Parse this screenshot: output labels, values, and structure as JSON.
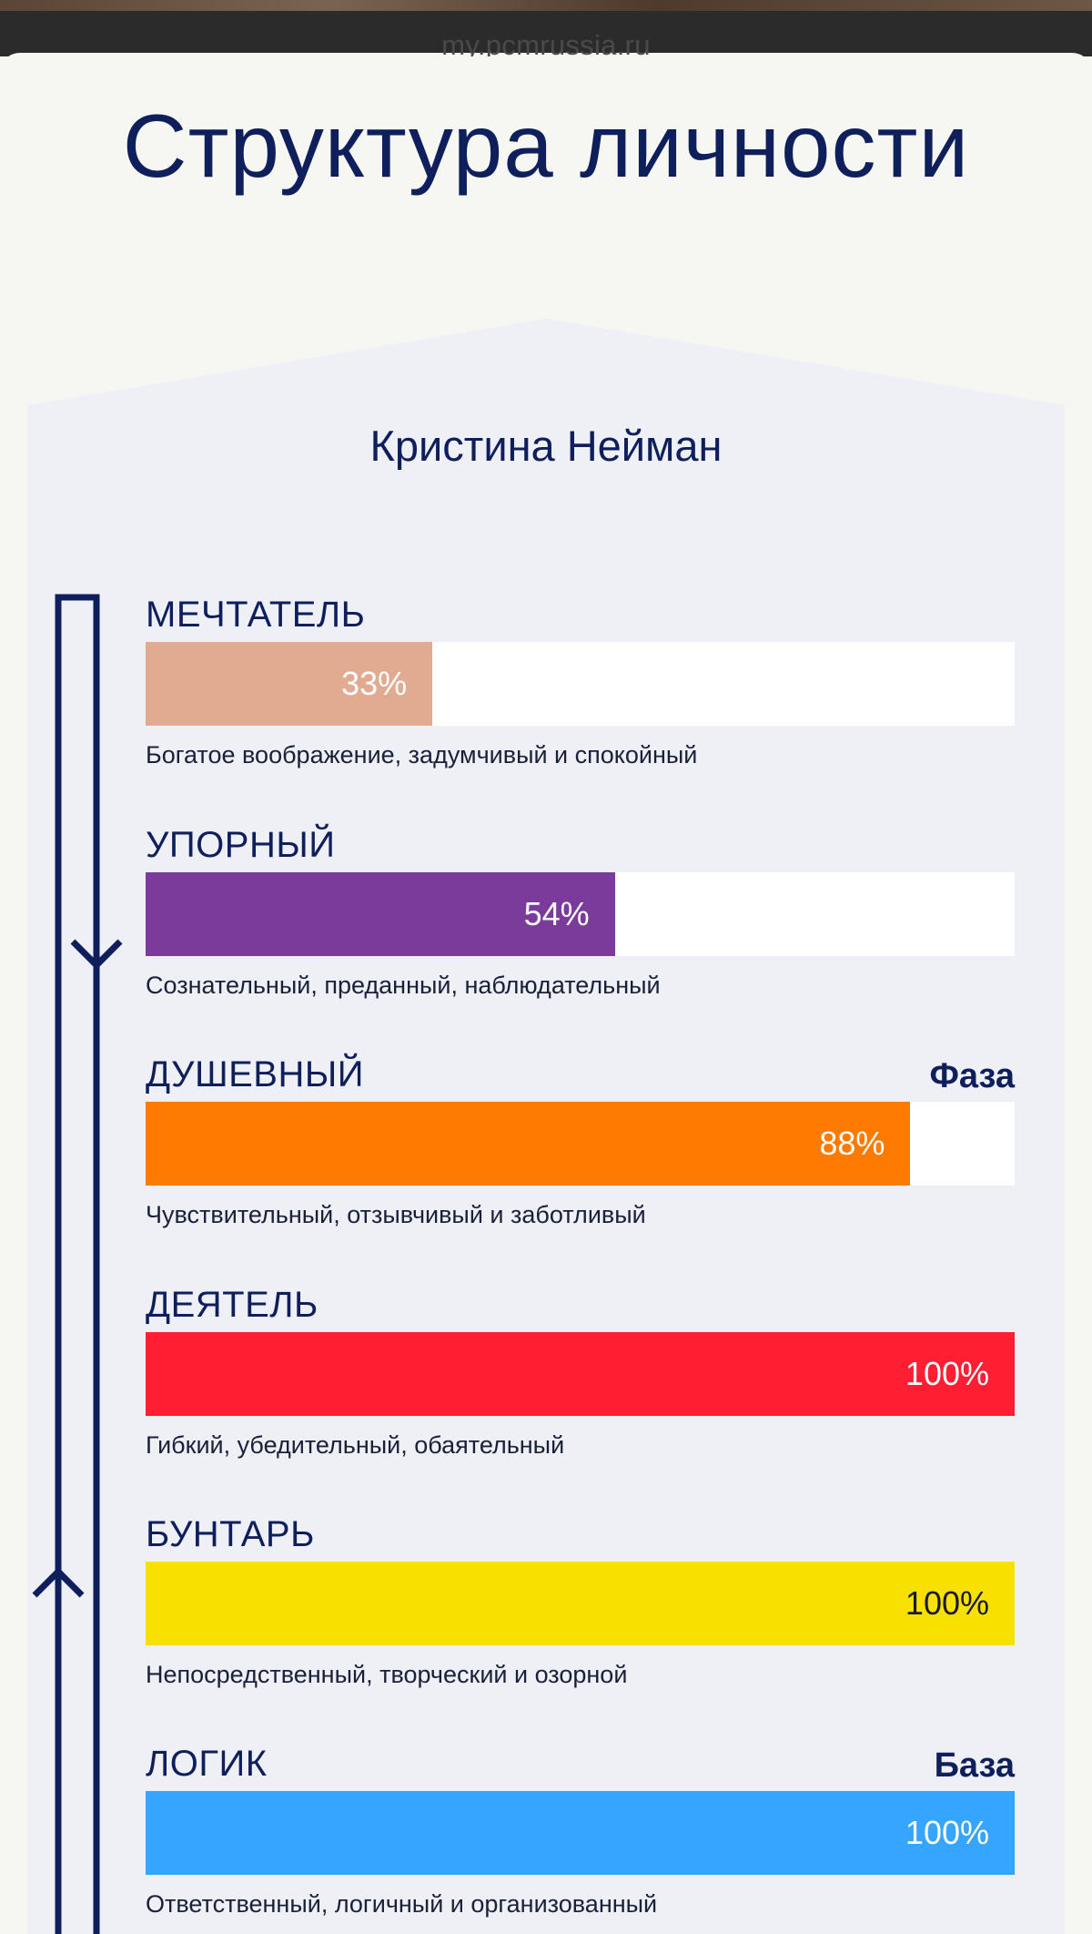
{
  "browser": {
    "url": "my.pcmrussia.ru"
  },
  "page": {
    "title": "Структура личности",
    "person_name": "Кристина Нейман"
  },
  "colors": {
    "navy": "#0f1f5c",
    "card_bg": "#eef0f5",
    "page_bg": "#f6f7f2"
  },
  "traits": [
    {
      "name": "МЕЧТАТЕЛЬ",
      "percent": 33,
      "value_label": "33%",
      "description": "Богатое воображение, задумчивый и спокойный",
      "tag": "",
      "color": "#e1ab92",
      "value_color": "light"
    },
    {
      "name": "УПОРНЫЙ",
      "percent": 54,
      "value_label": "54%",
      "description": "Сознательный, преданный, наблюдательный",
      "tag": "",
      "color": "#7b3b9a",
      "value_color": "light"
    },
    {
      "name": "ДУШЕВНЫЙ",
      "percent": 88,
      "value_label": "88%",
      "description": "Чувствительный, отзывчивый и заботливый",
      "tag": "Фаза",
      "color": "#ff7a00",
      "value_color": "light"
    },
    {
      "name": "ДЕЯТЕЛЬ",
      "percent": 100,
      "value_label": "100%",
      "description": "Гибкий, убедительный, обаятельный",
      "tag": "",
      "color": "#ff1e32",
      "value_color": "light"
    },
    {
      "name": "БУНТАРЬ",
      "percent": 100,
      "value_label": "100%",
      "description": "Непосредственный, творческий и озорной",
      "tag": "",
      "color": "#f8e100",
      "value_color": "dark"
    },
    {
      "name": "ЛОГИК",
      "percent": 100,
      "value_label": "100%",
      "description": "Ответственный, логичный и организованный",
      "tag": "База",
      "color": "#36a5ff",
      "value_color": "light"
    }
  ]
}
